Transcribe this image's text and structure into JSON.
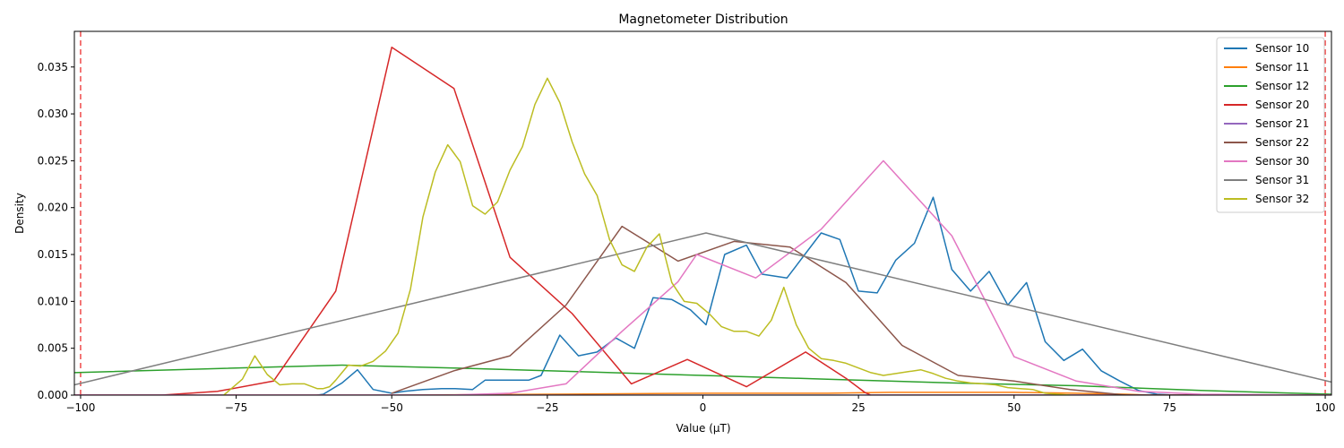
{
  "chart_data": {
    "type": "line",
    "title": "Magnetometer Distribution",
    "xlabel": "Value (µT)",
    "ylabel": "Density",
    "xlim": [
      -101,
      101
    ],
    "ylim": [
      0,
      0.0388
    ],
    "xticks": [
      -100,
      -75,
      -50,
      -25,
      0,
      25,
      50,
      75,
      100
    ],
    "xtick_labels": [
      "−100",
      "−75",
      "−50",
      "−25",
      "0",
      "25",
      "50",
      "75",
      "100"
    ],
    "yticks": [
      0,
      0.005,
      0.01,
      0.015,
      0.02,
      0.025,
      0.03,
      0.035
    ],
    "ytick_labels": [
      "0.000",
      "0.005",
      "0.010",
      "0.015",
      "0.020",
      "0.025",
      "0.030",
      "0.035"
    ],
    "legend_position": "top-right",
    "grid": false,
    "reference_lines": [
      {
        "x": -100,
        "color": "#f04a4a",
        "style": "dashed"
      },
      {
        "x": 100,
        "color": "#f04a4a",
        "style": "dashed"
      }
    ],
    "series": [
      {
        "name": "Sensor 10",
        "color": "#1f77b4",
        "points": [
          [
            -62,
            0
          ],
          [
            -61,
            0.0001
          ],
          [
            -58,
            0.0013
          ],
          [
            -55.5,
            0.0027
          ],
          [
            -53,
            0.0006
          ],
          [
            -50,
            0.0002
          ],
          [
            -48,
            0.0004
          ],
          [
            -45,
            0.0006
          ],
          [
            -42,
            0.0007
          ],
          [
            -40,
            0.0007
          ],
          [
            -37,
            0.0006
          ],
          [
            -35,
            0.0016
          ],
          [
            -30,
            0.0016
          ],
          [
            -28,
            0.0016
          ],
          [
            -26,
            0.0021
          ],
          [
            -23,
            0.0064
          ],
          [
            -20,
            0.0042
          ],
          [
            -17,
            0.0046
          ],
          [
            -14,
            0.0061
          ],
          [
            -11,
            0.005
          ],
          [
            -8,
            0.0104
          ],
          [
            -5,
            0.0102
          ],
          [
            -2,
            0.0091
          ],
          [
            0.5,
            0.0075
          ],
          [
            3.5,
            0.015
          ],
          [
            7,
            0.016
          ],
          [
            9.5,
            0.0129
          ],
          [
            13.5,
            0.0125
          ],
          [
            19,
            0.0173
          ],
          [
            22,
            0.0166
          ],
          [
            25,
            0.0111
          ],
          [
            28,
            0.0109
          ],
          [
            31,
            0.0144
          ],
          [
            34,
            0.0162
          ],
          [
            37,
            0.0211
          ],
          [
            40,
            0.0134
          ],
          [
            43,
            0.0111
          ],
          [
            46,
            0.0132
          ],
          [
            49,
            0.0096
          ],
          [
            52,
            0.012
          ],
          [
            55,
            0.0057
          ],
          [
            58,
            0.0037
          ],
          [
            61,
            0.0049
          ],
          [
            64,
            0.0026
          ],
          [
            67,
            0.0015
          ],
          [
            70,
            0.0005
          ],
          [
            73,
            0.0001
          ],
          [
            76,
            0
          ]
        ]
      },
      {
        "name": "Sensor 11",
        "color": "#ff7f0e",
        "points": [
          [
            -101,
            0
          ],
          [
            -75,
            0
          ],
          [
            -50,
            0
          ],
          [
            -25,
            0.0001
          ],
          [
            0,
            0.0002
          ],
          [
            20,
            0.0002
          ],
          [
            30,
            0.0003
          ],
          [
            40,
            0.0003
          ],
          [
            50,
            0.0003
          ],
          [
            60,
            0.0002
          ],
          [
            68,
            0.0001
          ],
          [
            72,
            0
          ],
          [
            101,
            0
          ]
        ]
      },
      {
        "name": "Sensor 12",
        "color": "#2ca02c",
        "points": [
          [
            -101,
            0.0024
          ],
          [
            -80,
            0.0028
          ],
          [
            -58,
            0.0032
          ],
          [
            -40,
            0.0029
          ],
          [
            -20,
            0.0025
          ],
          [
            0,
            0.0021
          ],
          [
            20,
            0.0017
          ],
          [
            40,
            0.0013
          ],
          [
            60,
            0.001
          ],
          [
            80,
            0.0005
          ],
          [
            101,
            0.0001
          ]
        ]
      },
      {
        "name": "Sensor 20",
        "color": "#d62728",
        "points": [
          [
            -101,
            0
          ],
          [
            -87,
            0
          ],
          [
            -78,
            0.0004
          ],
          [
            -69,
            0.0015
          ],
          [
            -59,
            0.0111
          ],
          [
            -50,
            0.0371
          ],
          [
            -40,
            0.0327
          ],
          [
            -31,
            0.0147
          ],
          [
            -21,
            0.0087
          ],
          [
            -11.5,
            0.0012
          ],
          [
            -2.5,
            0.0038
          ],
          [
            7,
            0.0009
          ],
          [
            16.5,
            0.0046
          ],
          [
            23,
            0.0018
          ],
          [
            26,
            0.0003
          ],
          [
            27,
            0
          ],
          [
            101,
            0
          ]
        ]
      },
      {
        "name": "Sensor 21",
        "color": "#9467bd",
        "points": [
          [
            -101,
            0
          ],
          [
            101,
            0
          ]
        ]
      },
      {
        "name": "Sensor 22",
        "color": "#8c564b",
        "points": [
          [
            -50,
            0.0002
          ],
          [
            -40,
            0.0026
          ],
          [
            -31,
            0.0042
          ],
          [
            -22,
            0.0096
          ],
          [
            -13,
            0.018
          ],
          [
            -4,
            0.0143
          ],
          [
            5,
            0.0164
          ],
          [
            14,
            0.0158
          ],
          [
            23,
            0.012
          ],
          [
            32,
            0.0053
          ],
          [
            41,
            0.0021
          ],
          [
            50,
            0.0015
          ],
          [
            59,
            0.0006
          ],
          [
            68,
            0
          ],
          [
            101,
            0
          ]
        ]
      },
      {
        "name": "Sensor 30",
        "color": "#e377c2",
        "points": [
          [
            -101,
            0
          ],
          [
            -41,
            0
          ],
          [
            -31,
            0.0002
          ],
          [
            -22,
            0.0012
          ],
          [
            -13,
            0.0068
          ],
          [
            -4,
            0.0121
          ],
          [
            -1,
            0.015
          ],
          [
            8.5,
            0.0125
          ],
          [
            19,
            0.0177
          ],
          [
            29,
            0.025
          ],
          [
            40,
            0.017
          ],
          [
            50,
            0.0041
          ],
          [
            60,
            0.0015
          ],
          [
            70,
            0.0004
          ],
          [
            80,
            0.0001
          ],
          [
            101,
            0
          ]
        ]
      },
      {
        "name": "Sensor 31",
        "color": "#7f7f7f",
        "points": [
          [
            -101,
            0.0011
          ],
          [
            0.5,
            0.0173
          ],
          [
            101,
            0.0014
          ]
        ]
      },
      {
        "name": "Sensor 32",
        "color": "#bcbd22",
        "points": [
          [
            -77,
            0
          ],
          [
            -74,
            0.0017
          ],
          [
            -72,
            0.0042
          ],
          [
            -70,
            0.0022
          ],
          [
            -68,
            0.0011
          ],
          [
            -66,
            0.0012
          ],
          [
            -64,
            0.0012
          ],
          [
            -62,
            0.0007
          ],
          [
            -61,
            0.0007
          ],
          [
            -60,
            0.0009
          ],
          [
            -59,
            0.0016
          ],
          [
            -57,
            0.0032
          ],
          [
            -55,
            0.0031
          ],
          [
            -53,
            0.0036
          ],
          [
            -51,
            0.0047
          ],
          [
            -49,
            0.0066
          ],
          [
            -47,
            0.0113
          ],
          [
            -45,
            0.019
          ],
          [
            -43,
            0.0238
          ],
          [
            -41,
            0.0267
          ],
          [
            -39,
            0.0249
          ],
          [
            -37,
            0.0202
          ],
          [
            -35,
            0.0193
          ],
          [
            -33,
            0.0206
          ],
          [
            -31,
            0.024
          ],
          [
            -29,
            0.0265
          ],
          [
            -27,
            0.031
          ],
          [
            -25,
            0.0338
          ],
          [
            -23,
            0.0312
          ],
          [
            -21,
            0.027
          ],
          [
            -19,
            0.0236
          ],
          [
            -17,
            0.0213
          ],
          [
            -15,
            0.0166
          ],
          [
            -13,
            0.0139
          ],
          [
            -11,
            0.0132
          ],
          [
            -9,
            0.0158
          ],
          [
            -7,
            0.0172
          ],
          [
            -5,
            0.012
          ],
          [
            -3,
            0.01
          ],
          [
            -1,
            0.0098
          ],
          [
            1,
            0.0087
          ],
          [
            3,
            0.0073
          ],
          [
            5,
            0.0068
          ],
          [
            7,
            0.0068
          ],
          [
            9,
            0.0063
          ],
          [
            11,
            0.008
          ],
          [
            13,
            0.0115
          ],
          [
            15,
            0.0075
          ],
          [
            17,
            0.005
          ],
          [
            19,
            0.0039
          ],
          [
            21,
            0.0037
          ],
          [
            23,
            0.0034
          ],
          [
            25,
            0.0029
          ],
          [
            27,
            0.0024
          ],
          [
            29,
            0.0021
          ],
          [
            31,
            0.0023
          ],
          [
            33,
            0.0025
          ],
          [
            35,
            0.0027
          ],
          [
            37,
            0.0023
          ],
          [
            39,
            0.0018
          ],
          [
            41,
            0.0015
          ],
          [
            43,
            0.0013
          ],
          [
            45,
            0.0012
          ],
          [
            47,
            0.0011
          ],
          [
            49,
            0.0008
          ],
          [
            51,
            0.0007
          ],
          [
            53,
            0.0006
          ],
          [
            55,
            0.0002
          ],
          [
            57,
            0.0001
          ],
          [
            59,
            0
          ]
        ]
      }
    ]
  }
}
